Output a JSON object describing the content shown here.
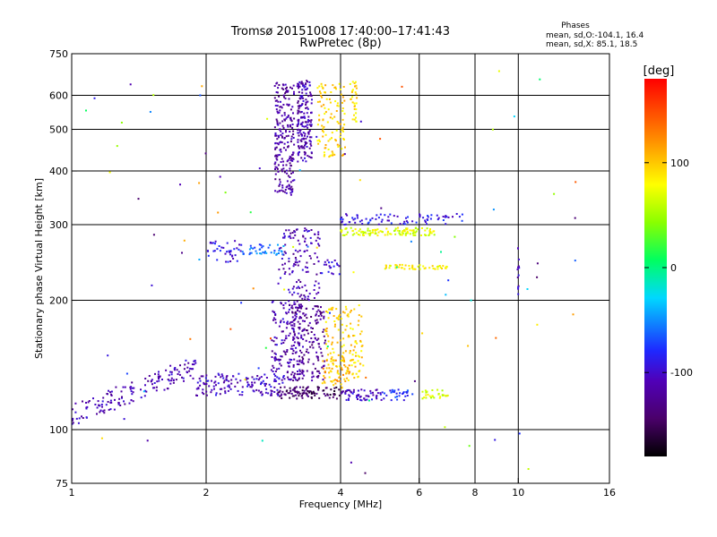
{
  "chart_data": {
    "type": "scatter",
    "title": "Tromsø 20151008 17:40:00–17:41:43",
    "subtitle": "RwPretec (8p)",
    "xlabel": "Frequency [MHz]",
    "ylabel": "Stationary phase Virtual Height [km]",
    "x_scale": "log",
    "y_scale": "log",
    "xlim": [
      1,
      16
    ],
    "ylim": [
      75,
      750
    ],
    "x_ticks": [
      1,
      2,
      4,
      6,
      8,
      10,
      16
    ],
    "x_tick_labels": [
      "1",
      "2",
      "4",
      "6",
      "8",
      "10",
      "16"
    ],
    "x_gridlines": [
      2,
      4,
      6,
      8,
      10
    ],
    "y_ticks": [
      75,
      100,
      200,
      300,
      400,
      500,
      600,
      750
    ],
    "y_tick_labels": [
      "75",
      "100",
      "200",
      "300",
      "400",
      "500",
      "600",
      "750"
    ],
    "y_gridlines": [
      100,
      200,
      300,
      400,
      500,
      600
    ],
    "grid": true,
    "phases_header": "Phases",
    "phases_lines": [
      "mean, sd,O:-104.1, 16.4",
      "mean, sd,X:  85.1, 18.5"
    ],
    "colorbar": {
      "label": "[deg]",
      "ticks": [
        100,
        0,
        -100
      ],
      "tick_labels": [
        "100",
        "0",
        "-100"
      ],
      "range": [
        -180,
        180
      ]
    },
    "clusters": [
      {
        "f": [
          1.0,
          1.9
        ],
        "h": [
          108,
          140
        ],
        "phase": -110,
        "n": 160,
        "trend": 0.6
      },
      {
        "f": [
          1.9,
          3.0
        ],
        "h": [
          120,
          135
        ],
        "phase": -105,
        "n": 140
      },
      {
        "f": [
          2.9,
          3.4
        ],
        "h": [
          118,
          126
        ],
        "phase": -140,
        "n": 60
      },
      {
        "f": [
          3.4,
          4.0
        ],
        "h": [
          118,
          126
        ],
        "phase": -150,
        "n": 40
      },
      {
        "f": [
          4.0,
          5.0
        ],
        "h": [
          117,
          124
        ],
        "phase": -105,
        "n": 60
      },
      {
        "f": [
          5.0,
          5.8
        ],
        "h": [
          117,
          124
        ],
        "phase": -80,
        "n": 30
      },
      {
        "f": [
          6.1,
          7.0
        ],
        "h": [
          118,
          124
        ],
        "phase": 70,
        "n": 30
      },
      {
        "f": [
          2.8,
          3.3
        ],
        "h": [
          130,
          200
        ],
        "phase": -110,
        "n": 170
      },
      {
        "f": [
          3.1,
          3.7
        ],
        "h": [
          130,
          195
        ],
        "phase": -125,
        "n": 160
      },
      {
        "f": [
          2.9,
          3.6
        ],
        "h": [
          200,
          295
        ],
        "phase": -110,
        "n": 130
      },
      {
        "f": [
          3.7,
          4.5
        ],
        "h": [
          130,
          195
        ],
        "phase": 95,
        "n": 150
      },
      {
        "f": [
          3.6,
          4.2
        ],
        "h": [
          125,
          145
        ],
        "phase": 110,
        "n": 40
      },
      {
        "f": [
          2.0,
          2.4
        ],
        "h": [
          245,
          275
        ],
        "phase": -95,
        "n": 40
      },
      {
        "f": [
          2.4,
          3.0
        ],
        "h": [
          255,
          270
        ],
        "phase": -60,
        "n": 40
      },
      {
        "f": [
          4.0,
          6.5
        ],
        "h": [
          283,
          295
        ],
        "phase": 70,
        "n": 120
      },
      {
        "f": [
          4.0,
          7.5
        ],
        "h": [
          300,
          318
        ],
        "phase": -90,
        "n": 80
      },
      {
        "f": [
          5.0,
          7.0
        ],
        "h": [
          236,
          242
        ],
        "phase": 85,
        "n": 50
      },
      {
        "f": [
          3.6,
          4.0
        ],
        "h": [
          230,
          250
        ],
        "phase": -100,
        "n": 20
      },
      {
        "f": [
          2.85,
          3.15
        ],
        "h": [
          350,
          650
        ],
        "phase": -118,
        "n": 220
      },
      {
        "f": [
          3.2,
          3.45
        ],
        "h": [
          420,
          650
        ],
        "phase": -112,
        "n": 180
      },
      {
        "f": [
          3.55,
          4.1
        ],
        "h": [
          430,
          640
        ],
        "phase": 95,
        "n": 110
      },
      {
        "f": [
          4.2,
          4.35
        ],
        "h": [
          520,
          650
        ],
        "phase": 90,
        "n": 30
      },
      {
        "f": [
          9.95,
          10.05
        ],
        "h": [
          205,
          280
        ],
        "phase": -110,
        "n": 14
      },
      {
        "f": [
          1.0,
          14.0
        ],
        "h": [
          78,
          700
        ],
        "phase": -60,
        "n": 90,
        "sparse": true
      }
    ]
  }
}
